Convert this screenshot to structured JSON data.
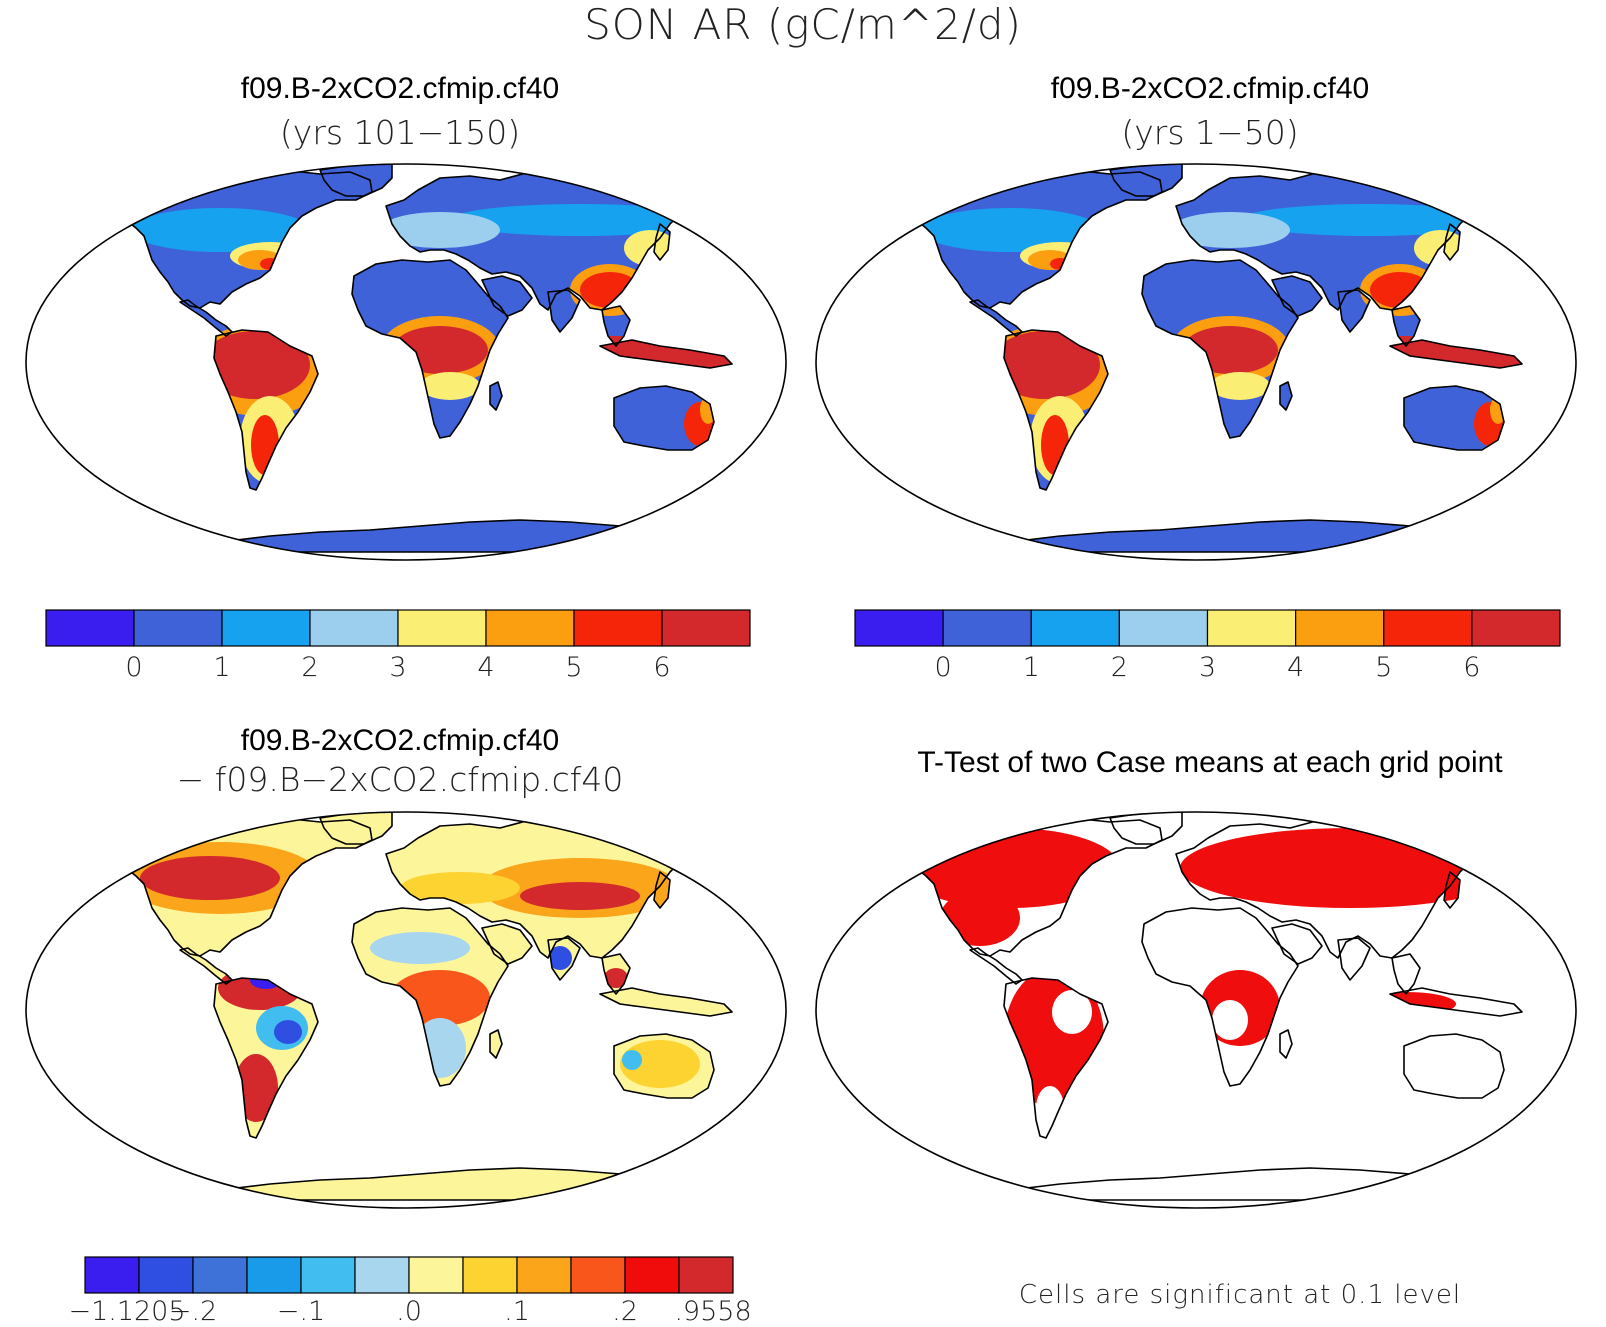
{
  "figure_title": "SON AR (gC/m^2/d)",
  "panels": [
    {
      "id": "tl",
      "title": "f09.B-2xCO2.cfmip.cf40",
      "subtitle": "(yrs 101−150)",
      "colorbar": {
        "colors": [
          "#3a1ef0",
          "#3f62d9",
          "#16a2ef",
          "#9ccfee",
          "#fbee74",
          "#fb9e10",
          "#f52509",
          "#d3292d"
        ],
        "tick_labels": [
          "0",
          "1",
          "2",
          "3",
          "4",
          "5",
          "6"
        ]
      }
    },
    {
      "id": "tr",
      "title": "f09.B-2xCO2.cfmip.cf40",
      "subtitle": "(yrs 1−50)",
      "colorbar": {
        "colors": [
          "#3a1ef0",
          "#3f62d9",
          "#16a2ef",
          "#9ccfee",
          "#fbee74",
          "#fb9e10",
          "#f52509",
          "#d3292d"
        ],
        "tick_labels": [
          "0",
          "1",
          "2",
          "3",
          "4",
          "5",
          "6"
        ]
      }
    },
    {
      "id": "bl",
      "title": "f09.B-2xCO2.cfmip.cf40",
      "subtitle": "− f09.B−2xCO2.cfmip.cf40",
      "colorbar": {
        "colors": [
          "#3a1ef0",
          "#2f4ee2",
          "#3f72d9",
          "#1a9be9",
          "#42bdf0",
          "#a9d6ef",
          "#fdf59a",
          "#fcd330",
          "#fba51a",
          "#f8561a",
          "#ef0c0a",
          "#d3292d"
        ],
        "tick_labels": [
          "−1.1205",
          "−.2",
          "−.1",
          ".0",
          ".1",
          ".2",
          ".9558"
        ]
      }
    },
    {
      "id": "br",
      "title": "T-Test of two Case means at each grid point",
      "subtitle": "",
      "note": "Cells are significant at 0.1 level"
    }
  ]
}
